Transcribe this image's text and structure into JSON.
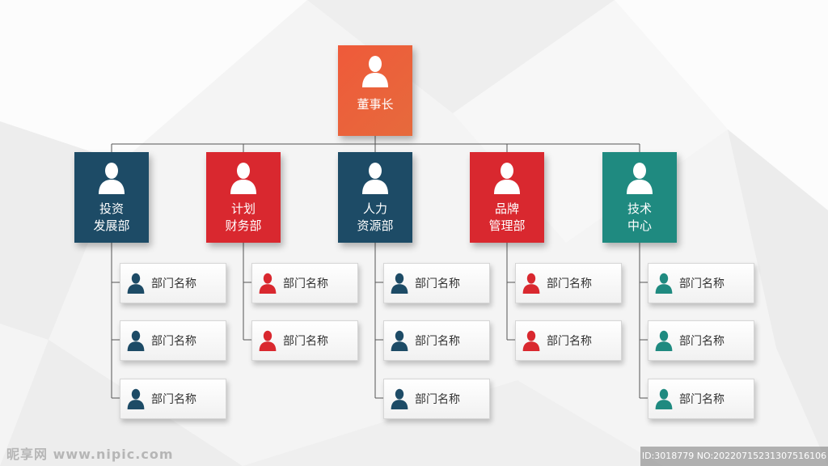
{
  "colors": {
    "top": "#ea5c3b",
    "navy": "#1d4b66",
    "red": "#d9282f",
    "teal": "#1f8a80",
    "line": "#555555"
  },
  "top": {
    "label": "董事长",
    "icon": "person-icon"
  },
  "departments": [
    {
      "label": "投资\n发展部",
      "color": "#1d4b66",
      "subs": [
        "部门名称",
        "部门名称",
        "部门名称"
      ]
    },
    {
      "label": "计划\n财务部",
      "color": "#d9282f",
      "subs": [
        "部门名称",
        "部门名称"
      ]
    },
    {
      "label": "人力\n资源部",
      "color": "#1d4b66",
      "subs": [
        "部门名称",
        "部门名称",
        "部门名称"
      ]
    },
    {
      "label": "品牌\n管理部",
      "color": "#d9282f",
      "subs": [
        "部门名称",
        "部门名称"
      ]
    },
    {
      "label": "技术\n中心",
      "color": "#1f8a80",
      "subs": [
        "部门名称",
        "部门名称",
        "部门名称"
      ]
    }
  ],
  "watermark": {
    "left": "昵享网 www.nipic.com",
    "right": "ID:3018779 NO:20220715231307516106"
  }
}
